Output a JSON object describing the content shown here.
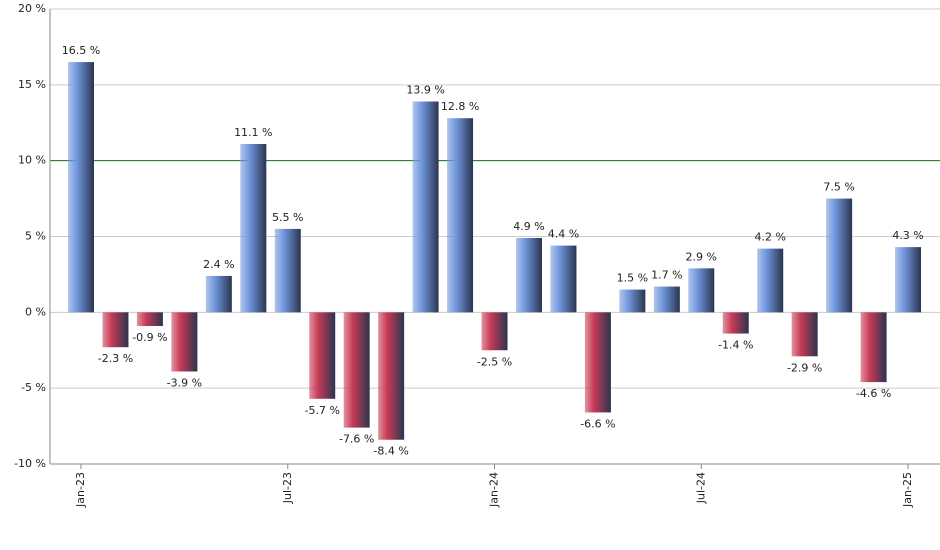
{
  "chart_data": {
    "type": "bar",
    "categories": [
      "Jan-23",
      null,
      null,
      null,
      null,
      null,
      "Jul-23",
      null,
      null,
      null,
      null,
      null,
      "Jan-24",
      null,
      null,
      null,
      null,
      null,
      "Jul-24",
      null,
      null,
      null,
      null,
      null,
      "Jan-25"
    ],
    "values": [
      16.5,
      -2.3,
      -0.9,
      -3.9,
      2.4,
      11.1,
      5.5,
      -5.7,
      -7.6,
      -8.4,
      13.9,
      12.8,
      -2.5,
      4.9,
      4.4,
      -6.6,
      1.5,
      1.7,
      2.9,
      -1.4,
      4.2,
      -2.9,
      7.5,
      -4.6,
      4.3
    ],
    "value_labels": [
      "16.5 %",
      "-2.3 %",
      "-0.9 %",
      "-3.9 %",
      "2.4 %",
      "11.1 %",
      "5.5 %",
      "-5.7 %",
      "-7.6 %",
      "-8.4 %",
      "13.9 %",
      "12.8 %",
      "-2.5 %",
      "4.9 %",
      "4.4 %",
      "-6.6 %",
      "1.5 %",
      "1.7 %",
      "2.9 %",
      "-1.4 %",
      "4.2 %",
      "-2.9 %",
      "7.5 %",
      "-4.6 %",
      "4.3 %"
    ],
    "colors": {
      "positive": "#7096dc",
      "negative": "#c83a55"
    },
    "reference_line": {
      "value": 10,
      "color": "#1a7a1a"
    },
    "ylim": [
      -10,
      20
    ],
    "yticks": [
      {
        "value": -10,
        "label": "-10 %"
      },
      {
        "value": -5,
        "label": "-5 %"
      },
      {
        "value": 0,
        "label": "0 %"
      },
      {
        "value": 5,
        "label": "5 %"
      },
      {
        "value": 10,
        "label": "10 %"
      },
      {
        "value": 15,
        "label": "15 %"
      },
      {
        "value": 20,
        "label": "20 %"
      }
    ],
    "grid": true
  }
}
